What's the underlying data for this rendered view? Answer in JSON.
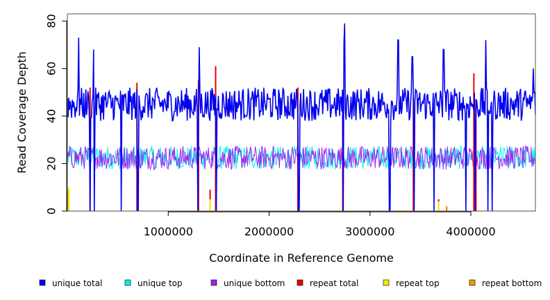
{
  "chart_data": {
    "type": "line",
    "title": "",
    "xlabel": "Coordinate in Reference Genome",
    "ylabel": "Read Coverage Depth",
    "xlim": [
      0,
      4640000
    ],
    "ylim": [
      0,
      83
    ],
    "x_ticks": [
      1000000,
      2000000,
      3000000,
      4000000
    ],
    "x_tick_labels": [
      "1000000",
      "2000000",
      "3000000",
      "4000000"
    ],
    "y_ticks": [
      0,
      20,
      40,
      60,
      80
    ],
    "y_tick_labels": [
      "0",
      "20",
      "40",
      "60",
      "80"
    ],
    "grid": false,
    "legend_position": "bottom",
    "legend": [
      {
        "name": "unique total",
        "color": "#0000ee"
      },
      {
        "name": "unique top",
        "color": "#00eeee"
      },
      {
        "name": "unique bottom",
        "color": "#a020f0"
      },
      {
        "name": "repeat total",
        "color": "#ee0000"
      },
      {
        "name": "repeat top",
        "color": "#eeee00"
      },
      {
        "name": "repeat bottom",
        "color": "#ee9a00"
      }
    ],
    "series": [
      {
        "name": "unique total",
        "color": "#0000ee",
        "mean": 45,
        "spread": 7,
        "peaks": [
          [
            110000,
            73
          ],
          [
            260000,
            68
          ],
          [
            1310000,
            69
          ],
          [
            2750000,
            79
          ],
          [
            2740000,
            71
          ],
          [
            3280000,
            72
          ],
          [
            3420000,
            65
          ],
          [
            3730000,
            68
          ],
          [
            4150000,
            72
          ],
          [
            4620000,
            60
          ]
        ],
        "dropouts": [
          225000,
          265000,
          535000,
          700000,
          1295000,
          1475000,
          2295000,
          2735000,
          3195000,
          3440000,
          3635000,
          3950000,
          4040000,
          4170000,
          4210000
        ]
      },
      {
        "name": "unique top",
        "color": "#00eeee",
        "mean": 22.5,
        "spread": 5
      },
      {
        "name": "unique bottom",
        "color": "#a020f0",
        "mean": 22.5,
        "spread": 5
      },
      {
        "name": "repeat total",
        "color": "#ee0000",
        "spikes": [
          [
            225000,
            52
          ],
          [
            690000,
            54
          ],
          [
            1300000,
            55
          ],
          [
            1415000,
            9
          ],
          [
            1470000,
            61
          ],
          [
            2285000,
            52
          ],
          [
            2730000,
            51
          ],
          [
            3430000,
            48
          ],
          [
            3680000,
            5
          ],
          [
            3760000,
            2
          ],
          [
            4030000,
            58
          ],
          [
            4050000,
            47
          ]
        ]
      },
      {
        "name": "repeat top",
        "color": "#eeee00",
        "spikes": [
          [
            15000,
            10
          ],
          [
            1415000,
            5
          ],
          [
            3680000,
            4
          ]
        ]
      },
      {
        "name": "repeat bottom",
        "color": "#ee9a00",
        "spikes": [
          [
            10000,
            9
          ],
          [
            1415000,
            4
          ],
          [
            3680000,
            3
          ],
          [
            3760000,
            2
          ]
        ]
      }
    ]
  }
}
